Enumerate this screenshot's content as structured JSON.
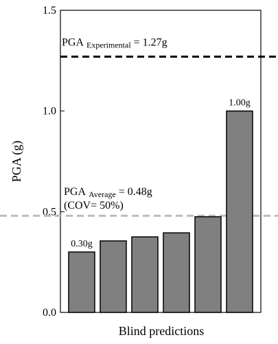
{
  "chart_data": {
    "type": "bar",
    "y_label": "PGA (g)",
    "x_label": "Blind predictions",
    "categories": [
      null,
      null,
      null,
      null,
      null,
      null
    ],
    "values": [
      0.3,
      0.355,
      0.375,
      0.395,
      0.475,
      1.0
    ],
    "value_labels": [
      "0.30g",
      null,
      null,
      null,
      null,
      "1.00g"
    ],
    "color": "#808080",
    "ylim": [
      0,
      1.5
    ],
    "yticks": [
      {
        "value": 0,
        "label": "0.0"
      },
      {
        "value": 0.5,
        "label": "0.5"
      },
      {
        "value": 1,
        "label": "1.0"
      },
      {
        "value": 1.5,
        "label": "1.5"
      }
    ],
    "reference_lines": [
      {
        "value": 1.27,
        "color": "#000000",
        "text": "PGA",
        "subscript": "Experimental",
        "suffix": "= 1.27g"
      },
      {
        "value": 0.48,
        "color": "#bbbbbb",
        "text": "PGA",
        "subscript": "Average",
        "suffix": "= 0.48g",
        "note": "(COV= 50%)"
      }
    ]
  }
}
